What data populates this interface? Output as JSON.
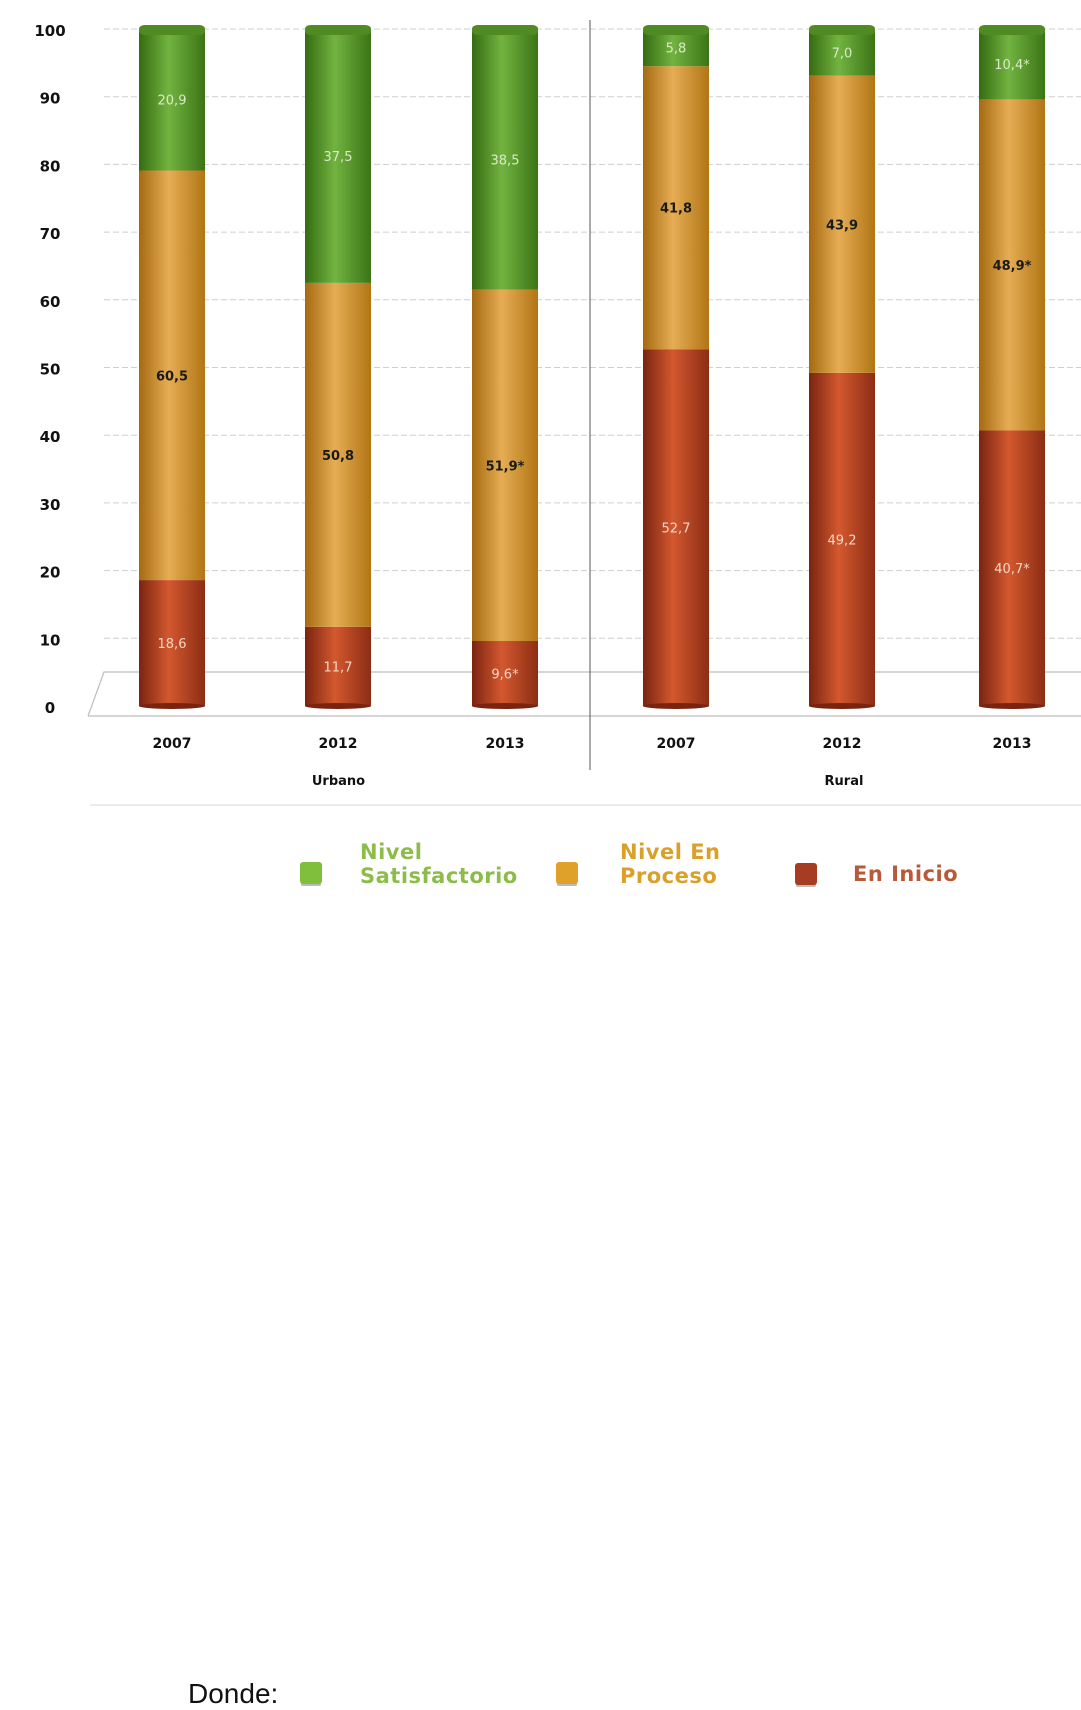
{
  "chart_data": {
    "type": "bar",
    "stacked": true,
    "ylim": [
      0,
      100
    ],
    "yticks": [
      0,
      10,
      20,
      30,
      40,
      50,
      60,
      70,
      80,
      90,
      100
    ],
    "grid": true,
    "groups": [
      {
        "label": "Urbano",
        "categories": [
          "2007",
          "2012",
          "2013"
        ]
      },
      {
        "label": "Rural",
        "categories": [
          "2007",
          "2012",
          "2013"
        ]
      }
    ],
    "series": [
      {
        "name": "En Inicio",
        "color": "#b5402a",
        "values": [
          18.6,
          11.7,
          9.6,
          52.7,
          49.2,
          40.7
        ],
        "labels": [
          "18,6",
          "11,7",
          "9,6*",
          "52,7",
          "49,2",
          "40,7*"
        ]
      },
      {
        "name": "Nivel En Proceso",
        "color": "#d9961f",
        "values": [
          60.5,
          50.8,
          51.9,
          41.8,
          43.9,
          48.9
        ],
        "labels": [
          "60,5",
          "50,8",
          "51,9*",
          "41,8",
          "43,9",
          "48,9*"
        ]
      },
      {
        "name": "Nivel Satisfactorio",
        "color": "#5a9d2a",
        "values": [
          20.9,
          37.5,
          38.5,
          5.8,
          7.0,
          10.4
        ],
        "labels": [
          "20,9",
          "37,5",
          "38,5",
          "5,8",
          "7,0",
          "10,4*"
        ]
      }
    ],
    "legend_position": "bottom"
  },
  "legend": {
    "intro": "Donde:",
    "items": [
      {
        "line1": "Nivel",
        "line2": "Satisfactorio",
        "color": "#7fbf3a",
        "text_color": "#8cbd4a"
      },
      {
        "line1": "Nivel En",
        "line2": "Proceso",
        "color": "#e0a12b",
        "text_color": "#d9a02a"
      },
      {
        "line1": "En Inicio",
        "line2": "",
        "color": "#a63d22",
        "text_color": "#b85a3a"
      }
    ]
  }
}
